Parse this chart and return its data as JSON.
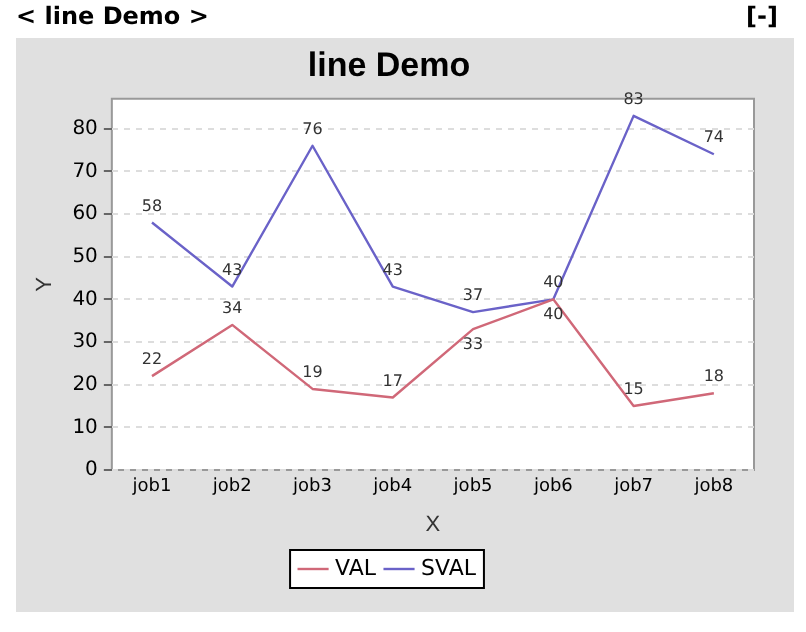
{
  "chart_data": {
    "type": "line",
    "title": "line Demo",
    "xlabel": "X",
    "ylabel": "Y",
    "annotations": [
      "< line Demo >",
      "[-]"
    ],
    "categories": [
      "job1",
      "job2",
      "job3",
      "job4",
      "job5",
      "job6",
      "job7",
      "job8"
    ],
    "series": [
      {
        "name": "VAL",
        "color": "#d06878",
        "values": [
          22,
          34,
          19,
          17,
          33,
          40,
          15,
          18
        ]
      },
      {
        "name": "SVAL",
        "color": "#6a62c8",
        "values": [
          58,
          43,
          76,
          43,
          37,
          40,
          83,
          74
        ]
      }
    ],
    "ylim": [
      0,
      87
    ],
    "yticks": [
      0,
      10,
      20,
      30,
      40,
      50,
      60,
      70,
      80
    ],
    "grid": "y",
    "legend": "bottom",
    "data_labels": true,
    "marker": "none",
    "line_style": "solid"
  }
}
